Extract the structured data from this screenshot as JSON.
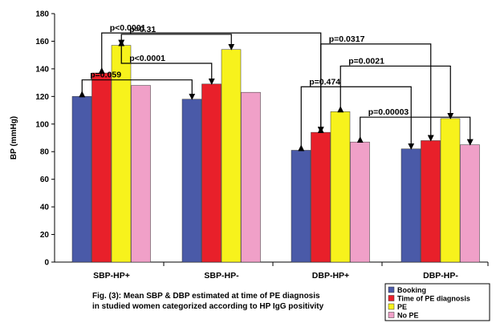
{
  "chart_data": {
    "type": "bar",
    "ylabel": "BP (mmHg)",
    "ylim": [
      0,
      180
    ],
    "yticks": [
      0,
      20,
      40,
      60,
      80,
      100,
      120,
      140,
      160,
      180
    ],
    "categories": [
      "SBP-HP+",
      "SBP-HP-",
      "DBP-HP+",
      "DBP-HP-"
    ],
    "series": [
      {
        "name": "Booking",
        "color": "#4a5aa8",
        "values": [
          120,
          118,
          81,
          82
        ]
      },
      {
        "name": "Time of PE diagnosis",
        "color": "#e8202a",
        "values": [
          137,
          129,
          94,
          88
        ]
      },
      {
        "name": "PE",
        "color": "#f7f21c",
        "values": [
          157,
          154,
          109,
          104
        ]
      },
      {
        "name": "No PE",
        "color": "#f0a0c8",
        "values": [
          128,
          123,
          87,
          85
        ]
      }
    ],
    "annotations": [
      {
        "label": "p<0.0001",
        "from": [
          0,
          1
        ],
        "to": [
          2,
          1
        ],
        "level": 166
      },
      {
        "label": "p=0.31",
        "from": [
          0,
          2
        ],
        "to": [
          1,
          2
        ],
        "level": 165
      },
      {
        "label": "p<0.0001",
        "from": [
          0,
          2
        ],
        "to": [
          1,
          1
        ],
        "level": 144
      },
      {
        "label": "p=0.059",
        "from": [
          0,
          0
        ],
        "to": [
          1,
          0
        ],
        "level": 132
      },
      {
        "label": "p=0.0317",
        "from": [
          2,
          1
        ],
        "to": [
          3,
          1
        ],
        "level": 158
      },
      {
        "label": "p=0.0021",
        "from": [
          2,
          2
        ],
        "to": [
          3,
          2
        ],
        "level": 142
      },
      {
        "label": "p=0.474",
        "from": [
          2,
          0
        ],
        "to": [
          3,
          0
        ],
        "level": 127
      },
      {
        "label": "p=0.00003",
        "from": [
          2,
          3
        ],
        "to": [
          3,
          3
        ],
        "level": 105
      }
    ],
    "legend_position": "bottom-right",
    "grid": false,
    "caption_lines": [
      "Fig. (3): Mean SBP & DBP estimated at time of PE diagnosis",
      "in studied women  categorized according to HP IgG positivity"
    ]
  }
}
